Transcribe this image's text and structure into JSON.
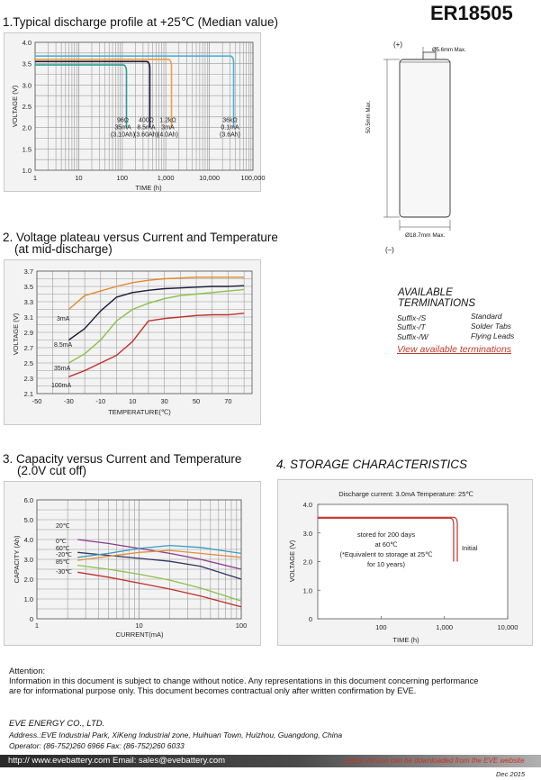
{
  "header": {
    "model": "ER18505"
  },
  "s1": {
    "title": "1.Typical discharge profile at +25℃ (Median value)"
  },
  "s2": {
    "title1": "2. Voltage plateau versus Current and Temperature",
    "title2": "(at mid-discharge)"
  },
  "s3": {
    "title1": "3. Capacity versus Current and Temperature",
    "title2": "(2.0V cut off)"
  },
  "s4": {
    "title": "4. STORAGE CHARACTERISTICS"
  },
  "drawing": {
    "plus": "(+)",
    "minus": "(–)",
    "top_dim": "Ø5.6mm Max.",
    "height_dim": "50.5mm Max.",
    "bottom_dim": "Ø18.7mm Max."
  },
  "terminations": {
    "title1": "AVAILABLE",
    "title2": "TERMINATIONS",
    "rows": [
      {
        "suffix": "Suffix-/S",
        "type": "Standard"
      },
      {
        "suffix": "Suffix-/T",
        "type": "Solder Tabs"
      },
      {
        "suffix": "Suffix-/W",
        "type": "Flying Leads"
      }
    ],
    "link": "View available terminations"
  },
  "charts": {
    "discharge": {
      "type": "line",
      "ylabel": "VOLTAGE (V)",
      "xlabel": "TIME (h)",
      "xscale": "log",
      "ylim": [
        1.0,
        4.0
      ],
      "yticks": [
        "4.0",
        "3.5",
        "3.0",
        "2.5",
        "2.0",
        "1.5",
        "1.0"
      ],
      "xticks": [
        "1",
        "10",
        "100",
        "1,000",
        "10,000",
        "100,000"
      ],
      "series": [
        {
          "color": "#2a9d8f",
          "label": [
            "96Ω",
            "35mA",
            "(3.10Ah)"
          ],
          "plateau": 3.47,
          "end": 125
        },
        {
          "color": "#1a1a3a",
          "label": [
            "400Ω",
            "8.5mA",
            "(3.60Ah)"
          ],
          "plateau": 3.55,
          "end": 430
        },
        {
          "color": "#f0a040",
          "label": [
            "1.2kΩ",
            "3mA",
            "(4.0Ah)"
          ],
          "plateau": 3.6,
          "end": 1350
        },
        {
          "color": "#4ab0d8",
          "label": [
            "36kΩ",
            "0.1mA",
            "(3.6Ah)"
          ],
          "plateau": 3.68,
          "end": 36000
        }
      ]
    },
    "plateau": {
      "type": "line",
      "ylabel": "VOLTAGE (V)",
      "xlabel": "TEMPERATURE(℃)",
      "xlim": [
        -50,
        85
      ],
      "ylim": [
        2.1,
        3.7
      ],
      "yticks": [
        "3.7",
        "3.5",
        "3.3",
        "3.1",
        "2.9",
        "2.7",
        "2.5",
        "2.3",
        "2.1"
      ],
      "xticks": [
        "-50",
        "-30",
        "-10",
        "10",
        "30",
        "50",
        "70"
      ],
      "series": [
        {
          "name": "3mA",
          "color": "#e08a2c",
          "x": [
            -30,
            -20,
            -10,
            0,
            10,
            20,
            30,
            40,
            50,
            60,
            70,
            80
          ],
          "y": [
            3.2,
            3.38,
            3.44,
            3.5,
            3.55,
            3.58,
            3.6,
            3.61,
            3.62,
            3.62,
            3.62,
            3.62
          ]
        },
        {
          "name": "8.5mA",
          "color": "#1a1a3a",
          "x": [
            -30,
            -20,
            -10,
            0,
            10,
            20,
            30,
            40,
            50,
            60,
            70,
            80
          ],
          "y": [
            2.8,
            2.95,
            3.18,
            3.36,
            3.42,
            3.45,
            3.47,
            3.48,
            3.49,
            3.5,
            3.5,
            3.51
          ]
        },
        {
          "name": "35mA",
          "color": "#8cc04a",
          "x": [
            -30,
            -20,
            -10,
            0,
            10,
            20,
            30,
            40,
            50,
            60,
            70,
            80
          ],
          "y": [
            2.5,
            2.62,
            2.8,
            3.05,
            3.2,
            3.28,
            3.34,
            3.38,
            3.4,
            3.42,
            3.44,
            3.46
          ]
        },
        {
          "name": "100mA",
          "color": "#c0302a",
          "x": [
            -30,
            -20,
            -10,
            0,
            10,
            20,
            30,
            40,
            50,
            60,
            70,
            80
          ],
          "y": [
            2.32,
            2.4,
            2.5,
            2.6,
            2.78,
            3.05,
            3.08,
            3.1,
            3.12,
            3.13,
            3.13,
            3.15
          ]
        }
      ]
    },
    "capacity": {
      "type": "line",
      "ylabel": "CAPACITY (Ah)",
      "xlabel": "CURRENT(mA)",
      "xscale": "log",
      "xlim": [
        1,
        100
      ],
      "ylim": [
        0,
        6.0
      ],
      "yticks": [
        "6.0",
        "5.0",
        "4.0",
        "3.0",
        "2.0",
        "1.0",
        "0"
      ],
      "xticks": [
        "1",
        "10",
        "100"
      ],
      "series": [
        {
          "name": "20℃",
          "color": "#8a3a8a",
          "x": [
            2.5,
            5,
            10,
            20,
            40,
            100
          ],
          "y": [
            4.0,
            3.8,
            3.55,
            3.3,
            3.0,
            2.5
          ]
        },
        {
          "name": "0℃",
          "color": "#333366",
          "x": [
            2.5,
            5,
            10,
            20,
            40,
            100
          ],
          "y": [
            3.35,
            3.2,
            3.05,
            2.9,
            2.65,
            2.0
          ]
        },
        {
          "name": "60℃",
          "color": "#3a9cc0",
          "x": [
            2.5,
            5,
            10,
            20,
            40,
            100
          ],
          "y": [
            3.1,
            3.3,
            3.55,
            3.7,
            3.6,
            3.3
          ]
        },
        {
          "name": "-20℃",
          "color": "#e09040",
          "x": [
            2.5,
            5,
            10,
            20,
            40,
            100
          ],
          "y": [
            2.95,
            3.15,
            3.35,
            3.45,
            3.3,
            3.1
          ]
        },
        {
          "name": "85℃",
          "color": "#8cc04a",
          "x": [
            2.5,
            5,
            10,
            20,
            40,
            100
          ],
          "y": [
            2.7,
            2.5,
            2.25,
            1.95,
            1.55,
            0.9
          ]
        },
        {
          "name": "-30℃",
          "color": "#c0302a",
          "x": [
            2.5,
            5,
            10,
            20,
            40,
            100
          ],
          "y": [
            2.35,
            2.1,
            1.8,
            1.5,
            1.15,
            0.6
          ]
        }
      ]
    },
    "storage": {
      "type": "line",
      "header": "Discharge current: 3.0mA  Temperature:  25℃",
      "ylabel": "VOLTAGE (V)",
      "xlabel": "TIME (h)",
      "xscale": "log",
      "xlim": [
        10,
        10000
      ],
      "ylim": [
        0,
        4.0
      ],
      "yticks": [
        "4.0",
        "3.0",
        "2.0",
        "1.0",
        "0"
      ],
      "xticks": [
        "100",
        "1,000",
        "10,000"
      ],
      "note": [
        "stored for 200 days",
        "at 60℃",
        "(*Equivalent to storage at 25℃",
        "for 10 years)"
      ],
      "initial_label": "Initial",
      "series": [
        {
          "name": "stored",
          "color": "#c0302a",
          "plateau": 3.52,
          "end": 1400
        },
        {
          "name": "Initial",
          "color": "#c0302a",
          "plateau": 3.55,
          "end": 1600
        }
      ]
    }
  },
  "attention": {
    "title": "Attention:",
    "line1": "Information in this document is subject to change without notice.  Any representations in this document concerning performance",
    "line2": "are for informational purpose only. This document becomes contractual only after written confirmation by EVE."
  },
  "company": {
    "name": "EVE ENERGY CO., LTD.",
    "address": "Address.:EVE Industrial Park, XiKeng Industrial zone, Huihuan Town, Huizhou, Guangdong, China",
    "contact": "Operator: (86-752)260 6966    Fax: (86-752)260 6033"
  },
  "footer": {
    "web": "http:// www.evebattery.com  Email: sales@evebattery.com",
    "latest": "Latest version can be downloaded from the EVE website",
    "date": "Dec 2015"
  }
}
